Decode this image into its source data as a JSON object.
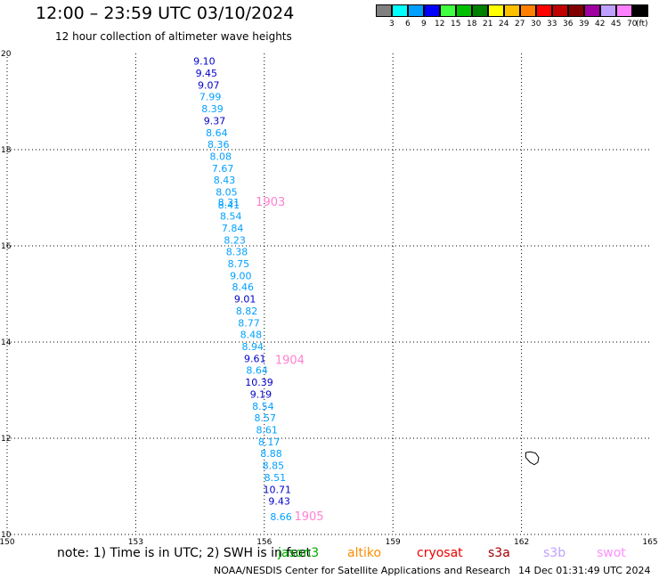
{
  "header": {
    "title": "12:00 – 23:59 UTC 03/10/2024",
    "subtitle": "12 hour collection of altimeter wave heights"
  },
  "legend": {
    "colors": [
      "#808080",
      "#00ffff",
      "#00a0ff",
      "#0000ff",
      "#40ff40",
      "#00c000",
      "#008000",
      "#ffff00",
      "#ffc000",
      "#ff8000",
      "#ff0000",
      "#c00000",
      "#800000",
      "#a000a0",
      "#c0a0ff",
      "#ff80ff",
      "#000000"
    ],
    "labels": [
      "3",
      "6",
      "9",
      "12",
      "15",
      "18",
      "21",
      "24",
      "27",
      "30",
      "33",
      "36",
      "39",
      "42",
      "45",
      "70"
    ],
    "unit": "(ft)"
  },
  "map": {
    "lon_ticks": [
      "150",
      "153",
      "156",
      "159",
      "162",
      "165"
    ],
    "lat_ticks": [
      "20",
      "18",
      "16",
      "14",
      "12",
      "10"
    ],
    "lon_range": [
      150,
      165
    ],
    "lat_range": [
      10,
      20
    ],
    "colors": {
      "light": "#00a0ff",
      "dark": "#0000cc",
      "time": "#ff80d0",
      "coast": "#000000"
    },
    "time_labels": [
      {
        "text": "1903",
        "lon": 155.8,
        "lat": 16.83
      },
      {
        "text": "1904",
        "lon": 156.25,
        "lat": 13.55
      },
      {
        "text": "1905",
        "lon": 156.7,
        "lat": 10.3
      }
    ],
    "observations": [
      {
        "text": "9.10",
        "lon": 154.6,
        "lat": 19.77,
        "dark": true
      },
      {
        "text": "9.45",
        "lon": 154.65,
        "lat": 19.52,
        "dark": true
      },
      {
        "text": "9.07",
        "lon": 154.7,
        "lat": 19.27,
        "dark": true
      },
      {
        "text": "7.99",
        "lon": 154.74,
        "lat": 19.03,
        "dark": false
      },
      {
        "text": "8.39",
        "lon": 154.79,
        "lat": 18.78,
        "dark": false
      },
      {
        "text": "9.37",
        "lon": 154.84,
        "lat": 18.53,
        "dark": true
      },
      {
        "text": "8.64",
        "lon": 154.89,
        "lat": 18.28,
        "dark": false
      },
      {
        "text": "8.36",
        "lon": 154.93,
        "lat": 18.04,
        "dark": false
      },
      {
        "text": "8.08",
        "lon": 154.98,
        "lat": 17.79,
        "dark": false
      },
      {
        "text": "7.67",
        "lon": 155.03,
        "lat": 17.54,
        "dark": false
      },
      {
        "text": "8.43",
        "lon": 155.07,
        "lat": 17.3,
        "dark": false
      },
      {
        "text": "8.05",
        "lon": 155.12,
        "lat": 17.05,
        "dark": false
      },
      {
        "text": "8.31",
        "lon": 155.17,
        "lat": 16.83,
        "dark": false
      },
      {
        "text": "8.41",
        "lon": 155.17,
        "lat": 16.78,
        "dark": false
      },
      {
        "text": "8.54",
        "lon": 155.22,
        "lat": 16.55,
        "dark": false
      },
      {
        "text": "7.84",
        "lon": 155.26,
        "lat": 16.3,
        "dark": false
      },
      {
        "text": "8.23",
        "lon": 155.31,
        "lat": 16.05,
        "dark": false
      },
      {
        "text": "8.38",
        "lon": 155.36,
        "lat": 15.81,
        "dark": false
      },
      {
        "text": "8.75",
        "lon": 155.4,
        "lat": 15.56,
        "dark": false
      },
      {
        "text": "9.00",
        "lon": 155.45,
        "lat": 15.31,
        "dark": false
      },
      {
        "text": "8.46",
        "lon": 155.5,
        "lat": 15.07,
        "dark": false
      },
      {
        "text": "9.01",
        "lon": 155.55,
        "lat": 14.82,
        "dark": true
      },
      {
        "text": "8.82",
        "lon": 155.59,
        "lat": 14.57,
        "dark": false
      },
      {
        "text": "8.77",
        "lon": 155.64,
        "lat": 14.32,
        "dark": false
      },
      {
        "text": "8.48",
        "lon": 155.69,
        "lat": 14.08,
        "dark": false
      },
      {
        "text": "8.94",
        "lon": 155.73,
        "lat": 13.83,
        "dark": false
      },
      {
        "text": "9.61",
        "lon": 155.78,
        "lat": 13.58,
        "dark": true
      },
      {
        "text": "8.64",
        "lon": 155.83,
        "lat": 13.34,
        "dark": false
      },
      {
        "text": "10.39",
        "lon": 155.88,
        "lat": 13.09,
        "dark": true
      },
      {
        "text": "9.19",
        "lon": 155.92,
        "lat": 12.84,
        "dark": true
      },
      {
        "text": "8.54",
        "lon": 155.97,
        "lat": 12.59,
        "dark": false
      },
      {
        "text": "8.57",
        "lon": 156.02,
        "lat": 12.35,
        "dark": false
      },
      {
        "text": "8.61",
        "lon": 156.06,
        "lat": 12.1,
        "dark": false
      },
      {
        "text": "8.17",
        "lon": 156.11,
        "lat": 11.85,
        "dark": false
      },
      {
        "text": "8.88",
        "lon": 156.16,
        "lat": 11.61,
        "dark": false
      },
      {
        "text": "8.85",
        "lon": 156.21,
        "lat": 11.36,
        "dark": false
      },
      {
        "text": "8.51",
        "lon": 156.25,
        "lat": 11.11,
        "dark": false
      },
      {
        "text": "10.71",
        "lon": 156.3,
        "lat": 10.86,
        "dark": true
      },
      {
        "text": "9.43",
        "lon": 156.35,
        "lat": 10.62,
        "dark": true
      },
      {
        "text": "8.66",
        "lon": 156.39,
        "lat": 10.3,
        "dark": false
      }
    ],
    "coastline": [
      [
        162.2,
        11.72
      ],
      [
        162.33,
        11.69
      ],
      [
        162.4,
        11.6
      ],
      [
        162.38,
        11.5
      ],
      [
        162.3,
        11.45
      ],
      [
        162.2,
        11.5
      ],
      [
        162.1,
        11.6
      ],
      [
        162.1,
        11.7
      ]
    ]
  },
  "footer": {
    "note": "note:  1) Time is in UTC;  2) SWH is in feet",
    "satellites": [
      {
        "name": "jason3",
        "color": "#00aa00"
      },
      {
        "name": "altiko",
        "color": "#ff8c00"
      },
      {
        "name": "cryosat",
        "color": "#ee0000"
      },
      {
        "name": "s3a",
        "color": "#a00000"
      },
      {
        "name": "s3b",
        "color": "#c0a0ff"
      },
      {
        "name": "swot",
        "color": "#ff90ff"
      }
    ],
    "credit": "NOAA/NESDIS Center for Satellite Applications and Research",
    "timestamp": "14 Dec 01:31:49 UTC 2024"
  }
}
